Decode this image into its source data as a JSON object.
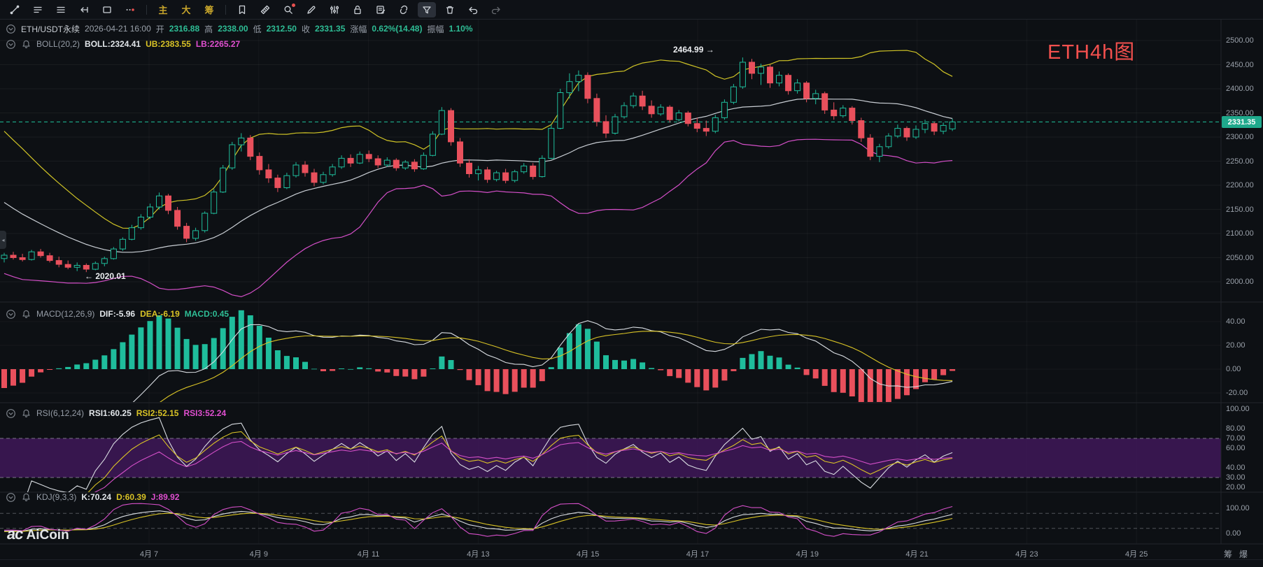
{
  "colors": {
    "up": "#1fbd9c",
    "down": "#e9505c",
    "boll_upper": "#cfc326",
    "boll_mid": "#c9ced4",
    "boll_lower": "#d44fc8",
    "line_white": "#d9dde2",
    "line_yellow": "#d9c326",
    "line_magenta": "#d44fc8",
    "price_line": "#1ec29b",
    "badge_bg": "#1fa98c",
    "tag_red": "#f4504e",
    "band_purple": "#41195c",
    "toolbar_cn": "#c7a52b"
  },
  "toolbar": {
    "items": [
      {
        "name": "line-tool-icon"
      },
      {
        "name": "panel-layout-icon"
      },
      {
        "name": "list-panel-icon"
      },
      {
        "name": "arrow-extend-icon"
      },
      {
        "name": "rect-tool-icon"
      },
      {
        "name": "brush-dots-icon"
      },
      {
        "name": "separator"
      },
      {
        "name": "cn-main-button",
        "label": "主"
      },
      {
        "name": "cn-big-button",
        "label": "大"
      },
      {
        "name": "cn-chips-button",
        "label": "筹"
      },
      {
        "name": "separator"
      },
      {
        "name": "flag-tool-icon"
      },
      {
        "name": "ruler-tool-icon"
      },
      {
        "name": "zoom-search-icon",
        "badge": true
      },
      {
        "name": "pen-tool-icon"
      },
      {
        "name": "sliders-icon"
      },
      {
        "name": "lock-icon"
      },
      {
        "name": "note-edit-icon"
      },
      {
        "name": "magnet-icon"
      },
      {
        "name": "filter-icon",
        "active": true
      },
      {
        "name": "trash-icon"
      },
      {
        "name": "undo-icon"
      },
      {
        "name": "redo-icon",
        "dim": true
      }
    ]
  },
  "header": {
    "symbol": "ETH/USDT永续",
    "datetime": "2026-04-21 16:00",
    "open_label": "开",
    "open": "2316.88",
    "high_label": "高",
    "high": "2338.00",
    "low_label": "低",
    "low": "2312.50",
    "close_label": "收",
    "close": "2331.35",
    "change_label": "涨幅",
    "change": "0.62%(14.48)",
    "amplitude_label": "振幅",
    "amplitude": "1.10%"
  },
  "indicators": {
    "boll": {
      "title": "BOLL(20,2)",
      "mid": "BOLL:2324.41",
      "upper": "UB:2383.55",
      "lower": "LB:2265.27"
    },
    "macd": {
      "title": "MACD(12,26,9)",
      "dif": "DIF:-5.96",
      "dea": "DEA:-6.19",
      "macd": "MACD:0.45"
    },
    "rsi": {
      "title": "RSI(6,12,24)",
      "rsi1": "RSI1:60.25",
      "rsi2": "RSI2:52.15",
      "rsi3": "RSI3:52.24"
    },
    "kdj": {
      "title": "KDJ(9,3,3)",
      "k": "K:70.24",
      "d": "D:60.39",
      "j": "J:89.92"
    }
  },
  "annotations": {
    "high_text": "2464.99 →",
    "low_text": "← 2020.01",
    "last_price": "2331.35",
    "chart_tag": "ETH4h图"
  },
  "axis": {
    "price_ticks": [
      "2500.00",
      "2450.00",
      "2400.00",
      "2350.00",
      "2300.00",
      "2250.00",
      "2200.00",
      "2150.00",
      "2100.00",
      "2050.00",
      "2000.00"
    ],
    "macd_ticks": [
      "40.00",
      "20.00",
      "0.00",
      "-20.00"
    ],
    "rsi_ticks": [
      "100.00",
      "80.00",
      "70.00",
      "60.00",
      "40.00",
      "30.00",
      "20.00"
    ],
    "kdj_ticks": [
      "100.00",
      "0.00"
    ],
    "date_ticks": [
      "4月 7",
      "4月 9",
      "4月 11",
      "4月 13",
      "4月 15",
      "4月 17",
      "4月 19",
      "4月 21",
      "4月 23",
      "4月 25"
    ],
    "right_toggles": [
      "筹",
      "爆"
    ]
  },
  "watermark": {
    "mark": "ac",
    "name": "AiCoin"
  },
  "chart_data": {
    "type": "candlestick",
    "title": "ETH/USDT perpetual 4h candles with BOLL(20,2), MACD(12,26,9), RSI(6,12,24), KDJ(9,3,3)",
    "ylim": [
      1958,
      2543
    ],
    "warmup_closes": [
      2320,
      2300,
      2282,
      2265,
      2250,
      2235,
      2220,
      2205,
      2190,
      2175,
      2160,
      2148,
      2136,
      2125,
      2114,
      2104,
      2095,
      2086,
      2078,
      2068
    ],
    "candles": [
      [
        2048,
        2060,
        2040,
        2055
      ],
      [
        2055,
        2062,
        2046,
        2050
      ],
      [
        2050,
        2058,
        2042,
        2046
      ],
      [
        2046,
        2066,
        2044,
        2062
      ],
      [
        2062,
        2068,
        2050,
        2054
      ],
      [
        2054,
        2060,
        2040,
        2044
      ],
      [
        2044,
        2052,
        2030,
        2036
      ],
      [
        2036,
        2044,
        2026,
        2030
      ],
      [
        2030,
        2040,
        2022,
        2034
      ],
      [
        2034,
        2038,
        2020.01,
        2026
      ],
      [
        2026,
        2042,
        2024,
        2038
      ],
      [
        2038,
        2052,
        2032,
        2048
      ],
      [
        2048,
        2072,
        2046,
        2068
      ],
      [
        2068,
        2092,
        2064,
        2088
      ],
      [
        2088,
        2118,
        2086,
        2112
      ],
      [
        2112,
        2140,
        2108,
        2134
      ],
      [
        2134,
        2162,
        2130,
        2155
      ],
      [
        2155,
        2185,
        2150,
        2178
      ],
      [
        2178,
        2182,
        2140,
        2148
      ],
      [
        2148,
        2155,
        2108,
        2115
      ],
      [
        2115,
        2122,
        2082,
        2090
      ],
      [
        2090,
        2112,
        2085,
        2106
      ],
      [
        2106,
        2146,
        2102,
        2142
      ],
      [
        2142,
        2192,
        2140,
        2186
      ],
      [
        2186,
        2242,
        2184,
        2236
      ],
      [
        2236,
        2290,
        2232,
        2284
      ],
      [
        2284,
        2308,
        2270,
        2298
      ],
      [
        2298,
        2304,
        2252,
        2260
      ],
      [
        2260,
        2268,
        2222,
        2232
      ],
      [
        2232,
        2244,
        2205,
        2215
      ],
      [
        2215,
        2222,
        2186,
        2195
      ],
      [
        2195,
        2226,
        2192,
        2220
      ],
      [
        2220,
        2248,
        2216,
        2242
      ],
      [
        2242,
        2250,
        2218,
        2226
      ],
      [
        2226,
        2234,
        2198,
        2206
      ],
      [
        2206,
        2228,
        2202,
        2222
      ],
      [
        2222,
        2244,
        2218,
        2238
      ],
      [
        2238,
        2262,
        2234,
        2256
      ],
      [
        2256,
        2264,
        2238,
        2246
      ],
      [
        2246,
        2270,
        2244,
        2264
      ],
      [
        2264,
        2272,
        2248,
        2255
      ],
      [
        2255,
        2262,
        2236,
        2242
      ],
      [
        2242,
        2258,
        2238,
        2252
      ],
      [
        2252,
        2256,
        2230,
        2236
      ],
      [
        2236,
        2252,
        2232,
        2248
      ],
      [
        2248,
        2254,
        2228,
        2234
      ],
      [
        2234,
        2268,
        2232,
        2262
      ],
      [
        2262,
        2312,
        2260,
        2306
      ],
      [
        2306,
        2362,
        2304,
        2355
      ],
      [
        2355,
        2360,
        2282,
        2290
      ],
      [
        2290,
        2298,
        2238,
        2246
      ],
      [
        2246,
        2254,
        2216,
        2224
      ],
      [
        2224,
        2240,
        2210,
        2232
      ],
      [
        2232,
        2238,
        2205,
        2212
      ],
      [
        2212,
        2230,
        2208,
        2226
      ],
      [
        2226,
        2234,
        2204,
        2210
      ],
      [
        2210,
        2232,
        2206,
        2228
      ],
      [
        2228,
        2246,
        2224,
        2240
      ],
      [
        2240,
        2246,
        2212,
        2218
      ],
      [
        2218,
        2262,
        2216,
        2256
      ],
      [
        2256,
        2326,
        2254,
        2318
      ],
      [
        2318,
        2400,
        2316,
        2392
      ],
      [
        2392,
        2432,
        2380,
        2415
      ],
      [
        2415,
        2438,
        2395,
        2428
      ],
      [
        2428,
        2434,
        2370,
        2380
      ],
      [
        2380,
        2390,
        2322,
        2332
      ],
      [
        2332,
        2345,
        2298,
        2308
      ],
      [
        2308,
        2348,
        2305,
        2342
      ],
      [
        2342,
        2372,
        2338,
        2365
      ],
      [
        2365,
        2392,
        2360,
        2385
      ],
      [
        2385,
        2396,
        2356,
        2364
      ],
      [
        2364,
        2376,
        2340,
        2348
      ],
      [
        2348,
        2368,
        2344,
        2362
      ],
      [
        2362,
        2366,
        2330,
        2336
      ],
      [
        2336,
        2356,
        2332,
        2350
      ],
      [
        2350,
        2354,
        2322,
        2328
      ],
      [
        2328,
        2340,
        2310,
        2318
      ],
      [
        2318,
        2334,
        2302,
        2312
      ],
      [
        2312,
        2346,
        2308,
        2340
      ],
      [
        2340,
        2378,
        2336,
        2372
      ],
      [
        2372,
        2410,
        2368,
        2404
      ],
      [
        2404,
        2464.99,
        2400,
        2455
      ],
      [
        2455,
        2462,
        2420,
        2432
      ],
      [
        2432,
        2452,
        2408,
        2445
      ],
      [
        2445,
        2450,
        2402,
        2412
      ],
      [
        2412,
        2436,
        2405,
        2428
      ],
      [
        2428,
        2432,
        2388,
        2396
      ],
      [
        2396,
        2420,
        2390,
        2412
      ],
      [
        2412,
        2416,
        2372,
        2380
      ],
      [
        2380,
        2398,
        2368,
        2390
      ],
      [
        2390,
        2394,
        2348,
        2356
      ],
      [
        2356,
        2372,
        2336,
        2344
      ],
      [
        2344,
        2366,
        2340,
        2360
      ],
      [
        2360,
        2364,
        2326,
        2334
      ],
      [
        2334,
        2340,
        2290,
        2298
      ],
      [
        2298,
        2306,
        2252,
        2260
      ],
      [
        2260,
        2286,
        2248,
        2280
      ],
      [
        2280,
        2308,
        2276,
        2302
      ],
      [
        2302,
        2326,
        2298,
        2318
      ],
      [
        2318,
        2322,
        2292,
        2300
      ],
      [
        2300,
        2324,
        2296,
        2316
      ],
      [
        2316,
        2336,
        2308,
        2328
      ],
      [
        2328,
        2332,
        2304,
        2312
      ],
      [
        2312,
        2330,
        2306,
        2324
      ],
      [
        2316.88,
        2338,
        2312.5,
        2331.35
      ]
    ]
  }
}
